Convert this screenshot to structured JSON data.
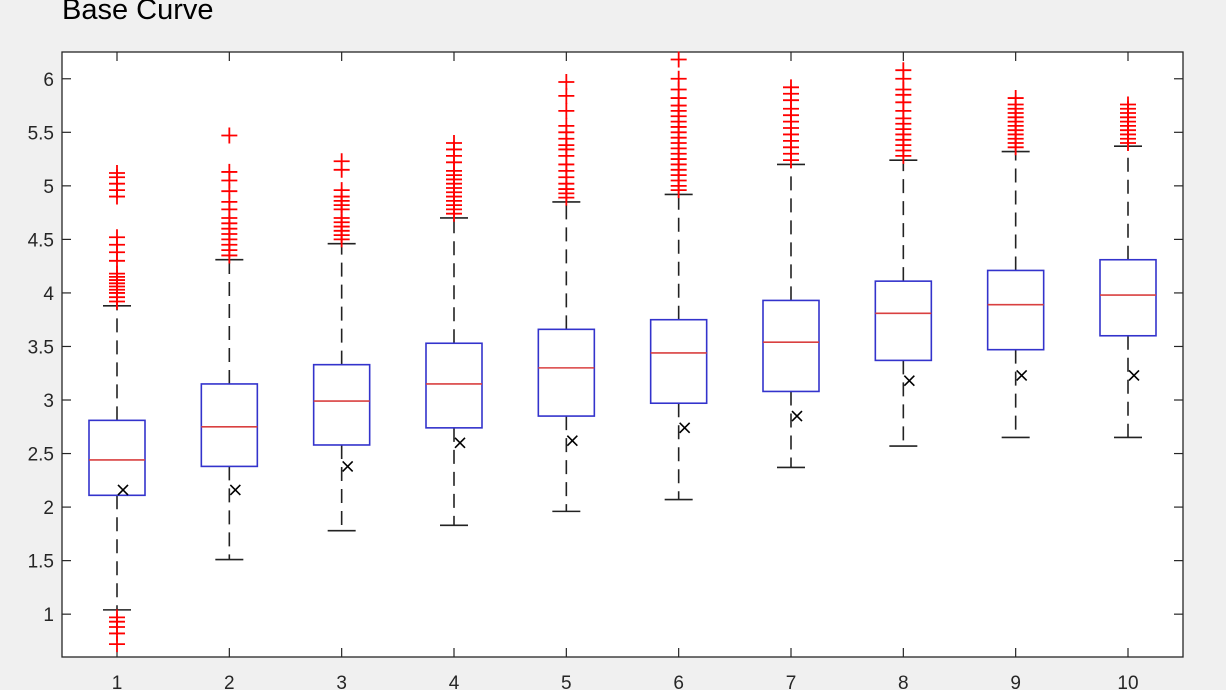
{
  "chart_data": {
    "type": "boxplot",
    "title": "Base Curve",
    "xlabel": "",
    "ylabel": "",
    "categories": [
      "1",
      "2",
      "3",
      "4",
      "5",
      "6",
      "7",
      "8",
      "9",
      "10"
    ],
    "ylim": [
      0.6,
      6.25
    ],
    "yticks": [
      1,
      1.5,
      2,
      2.5,
      3,
      3.5,
      4,
      4.5,
      5,
      5.5,
      6
    ],
    "yticklabels": [
      "1",
      "1.5",
      "2",
      "2.5",
      "3",
      "3.5",
      "4",
      "4.5",
      "5",
      "5.5",
      "6"
    ],
    "grid": false,
    "box_color": "#3333cc",
    "median_color": "#d94040",
    "outlier_color": "#ff0000",
    "mean_marker_color": "#000000",
    "boxes": [
      {
        "category": "1",
        "whisker_low": 1.04,
        "q1": 2.11,
        "median": 2.44,
        "q3": 2.81,
        "whisker_high": 3.88,
        "mean": 2.16,
        "outliers_high": [
          3.92,
          3.96,
          4.0,
          4.03,
          4.06,
          4.09,
          4.12,
          4.15,
          4.18,
          4.3,
          4.38,
          4.45,
          4.52,
          4.9,
          4.96,
          5.02,
          5.08,
          5.12
        ],
        "outliers_low": [
          0.72,
          0.82,
          0.88,
          0.93,
          0.97
        ]
      },
      {
        "category": "2",
        "whisker_low": 1.51,
        "q1": 2.38,
        "median": 2.75,
        "q3": 3.15,
        "whisker_high": 4.31,
        "mean": 2.16,
        "outliers_high": [
          4.35,
          4.4,
          4.45,
          4.5,
          4.55,
          4.6,
          4.65,
          4.7,
          4.78,
          4.85,
          4.95,
          5.05,
          5.13,
          5.47
        ],
        "outliers_low": []
      },
      {
        "category": "3",
        "whisker_low": 1.78,
        "q1": 2.58,
        "median": 2.99,
        "q3": 3.33,
        "whisker_high": 4.46,
        "mean": 2.38,
        "outliers_high": [
          4.5,
          4.54,
          4.58,
          4.62,
          4.66,
          4.7,
          4.78,
          4.82,
          4.86,
          4.9,
          4.96,
          5.15,
          5.23
        ],
        "outliers_low": []
      },
      {
        "category": "4",
        "whisker_low": 1.83,
        "q1": 2.74,
        "median": 3.15,
        "q3": 3.53,
        "whisker_high": 4.7,
        "mean": 2.6,
        "outliers_high": [
          4.74,
          4.78,
          4.82,
          4.86,
          4.9,
          4.94,
          4.98,
          5.02,
          5.06,
          5.1,
          5.14,
          5.22,
          5.28,
          5.34,
          5.4
        ],
        "outliers_low": []
      },
      {
        "category": "5",
        "whisker_low": 1.96,
        "q1": 2.85,
        "median": 3.3,
        "q3": 3.66,
        "whisker_high": 4.85,
        "mean": 2.62,
        "outliers_high": [
          4.89,
          4.93,
          4.97,
          5.02,
          5.08,
          5.14,
          5.2,
          5.28,
          5.34,
          5.38,
          5.44,
          5.5,
          5.56,
          5.7,
          5.84,
          5.97
        ],
        "outliers_low": []
      },
      {
        "category": "6",
        "whisker_low": 2.07,
        "q1": 2.97,
        "median": 3.44,
        "q3": 3.75,
        "whisker_high": 4.92,
        "mean": 2.74,
        "outliers_high": [
          4.96,
          5.0,
          5.05,
          5.1,
          5.15,
          5.2,
          5.25,
          5.3,
          5.35,
          5.4,
          5.45,
          5.5,
          5.55,
          5.6,
          5.65,
          5.7,
          5.75,
          5.82,
          5.9,
          6.0,
          6.18
        ],
        "outliers_low": []
      },
      {
        "category": "7",
        "whisker_low": 2.37,
        "q1": 3.08,
        "median": 3.54,
        "q3": 3.93,
        "whisker_high": 5.2,
        "mean": 2.85,
        "outliers_high": [
          5.24,
          5.3,
          5.36,
          5.42,
          5.48,
          5.54,
          5.6,
          5.66,
          5.72,
          5.8,
          5.86,
          5.92
        ],
        "outliers_low": []
      },
      {
        "category": "8",
        "whisker_low": 2.57,
        "q1": 3.37,
        "median": 3.81,
        "q3": 4.11,
        "whisker_high": 5.24,
        "mean": 3.18,
        "outliers_high": [
          5.28,
          5.33,
          5.38,
          5.43,
          5.48,
          5.53,
          5.58,
          5.63,
          5.7,
          5.78,
          5.85,
          5.9,
          6.0,
          6.08
        ],
        "outliers_low": []
      },
      {
        "category": "9",
        "whisker_low": 2.65,
        "q1": 3.47,
        "median": 3.89,
        "q3": 4.21,
        "whisker_high": 5.32,
        "mean": 3.23,
        "outliers_high": [
          5.36,
          5.4,
          5.44,
          5.48,
          5.52,
          5.56,
          5.6,
          5.64,
          5.68,
          5.72,
          5.76,
          5.82
        ],
        "outliers_low": []
      },
      {
        "category": "10",
        "whisker_low": 2.65,
        "q1": 3.6,
        "median": 3.98,
        "q3": 4.31,
        "whisker_high": 5.37,
        "mean": 3.23,
        "outliers_high": [
          5.4,
          5.44,
          5.48,
          5.52,
          5.56,
          5.6,
          5.64,
          5.68,
          5.72,
          5.76
        ],
        "outliers_low": []
      }
    ]
  }
}
